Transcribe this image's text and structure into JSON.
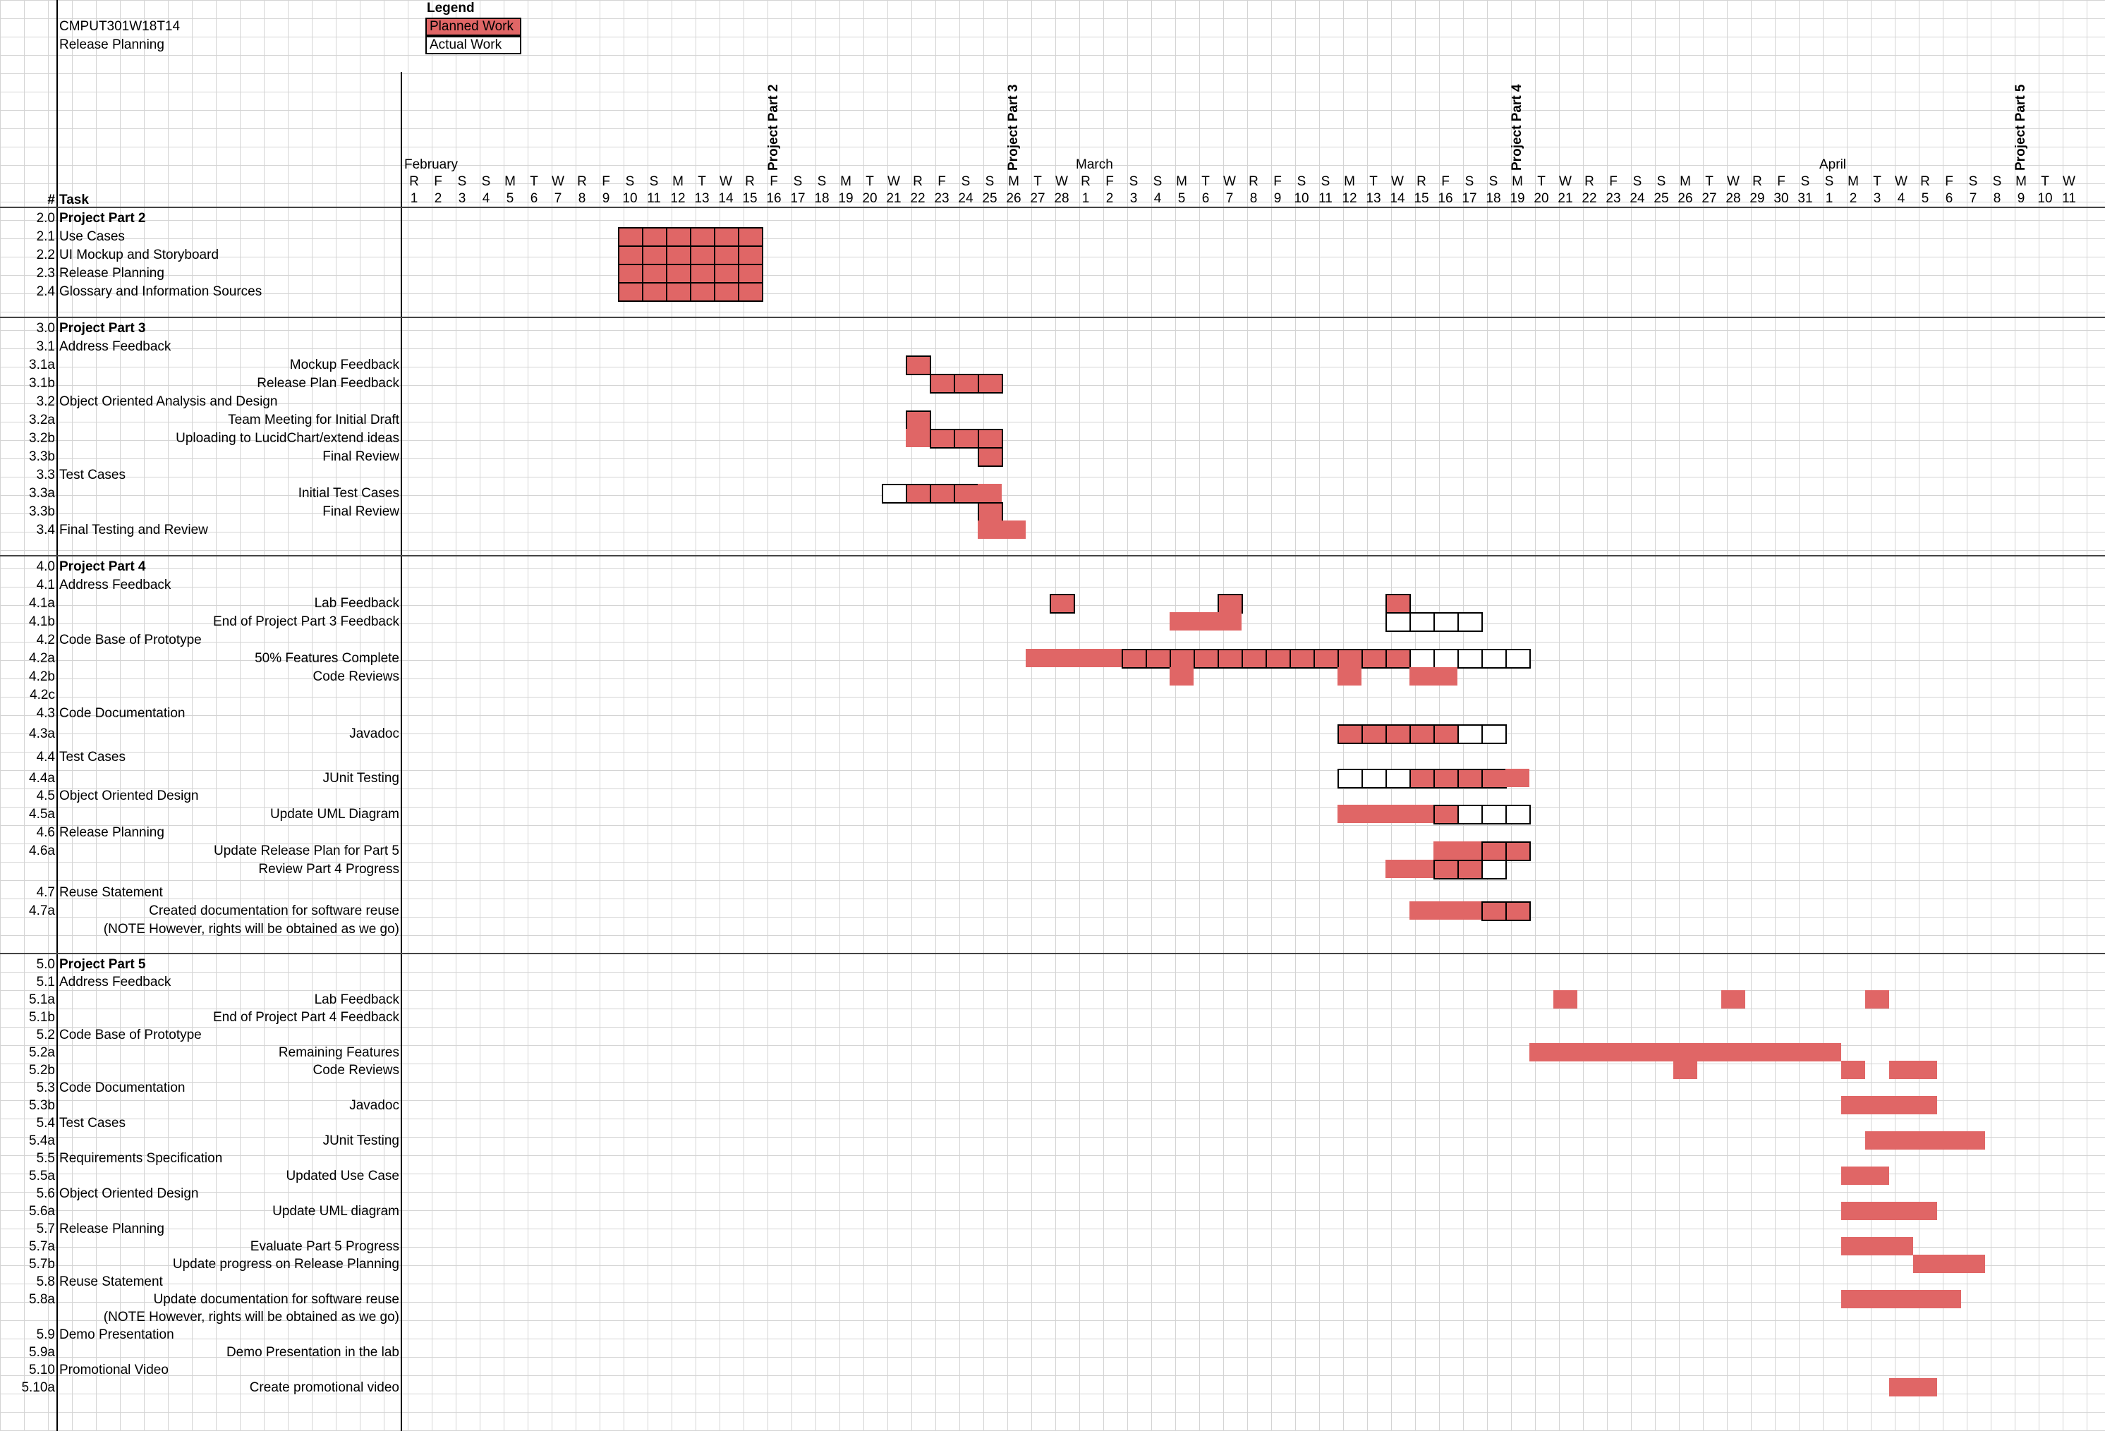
{
  "project": {
    "code": "CMPUT301W18T14",
    "doc_title": "Release Planning"
  },
  "legend": {
    "title": "Legend",
    "planned": "Planned Work",
    "actual": "Actual Work",
    "planned_color": "#e06666",
    "actual_color": "#ffffff"
  },
  "columns": {
    "num": "#",
    "task": "Task"
  },
  "months": [
    "February",
    "March",
    "April"
  ],
  "milestones": [
    "Project Part 2",
    "Project Part 3",
    "Project Part 4",
    "Project Part 5"
  ],
  "day_letters": [
    "R",
    "F",
    "S",
    "S",
    "M",
    "T",
    "W",
    "R",
    "F",
    "S",
    "S",
    "M",
    "T",
    "W",
    "R",
    "F",
    "S",
    "S",
    "M",
    "T",
    "W",
    "R",
    "F",
    "S",
    "S",
    "M",
    "T",
    "W",
    "R",
    "F",
    "S",
    "S",
    "M",
    "T",
    "W",
    "R",
    "F",
    "S",
    "S",
    "M",
    "T",
    "W",
    "R",
    "F",
    "S",
    "S",
    "M",
    "T",
    "W",
    "R",
    "F",
    "S",
    "S",
    "M",
    "T",
    "W",
    "R",
    "F",
    "S",
    "S",
    "M",
    "T",
    "W",
    "R",
    "F",
    "S",
    "S",
    "M",
    "T",
    "W"
  ],
  "day_numbers": [
    "1",
    "2",
    "3",
    "4",
    "5",
    "6",
    "7",
    "8",
    "9",
    "10",
    "11",
    "12",
    "13",
    "14",
    "15",
    "16",
    "17",
    "18",
    "19",
    "20",
    "21",
    "22",
    "23",
    "24",
    "25",
    "26",
    "27",
    "28",
    "1",
    "2",
    "3",
    "4",
    "5",
    "6",
    "7",
    "8",
    "9",
    "10",
    "11",
    "12",
    "13",
    "14",
    "15",
    "16",
    "17",
    "18",
    "19",
    "20",
    "21",
    "22",
    "23",
    "24",
    "25",
    "26",
    "27",
    "28",
    "29",
    "30",
    "31",
    "1",
    "2",
    "3",
    "4",
    "5",
    "6",
    "7",
    "8",
    "9",
    "10",
    "11"
  ],
  "tasks": [
    {
      "num": "2.0",
      "name": "Project Part 2",
      "bold": true,
      "align": "left"
    },
    {
      "num": "2.1",
      "name": "Use Cases",
      "align": "left"
    },
    {
      "num": "2.2",
      "name": "UI Mockup and Storyboard",
      "align": "left"
    },
    {
      "num": "2.3",
      "name": "Release Planning",
      "align": "left"
    },
    {
      "num": "2.4",
      "name": "Glossary and Information Sources",
      "align": "left"
    },
    {
      "num": "3.0",
      "name": "Project Part 3",
      "bold": true,
      "align": "left"
    },
    {
      "num": "3.1",
      "name": "Address Feedback",
      "align": "left"
    },
    {
      "num": "3.1a",
      "name": "Mockup Feedback",
      "align": "right"
    },
    {
      "num": "3.1b",
      "name": "Release Plan Feedback",
      "align": "right"
    },
    {
      "num": "3.2",
      "name": "Object Oriented Analysis and Design",
      "align": "left"
    },
    {
      "num": "3.2a",
      "name": "Team Meeting for Initial Draft",
      "align": "right"
    },
    {
      "num": "3.2b",
      "name": "Uploading to LucidChart/extend ideas",
      "align": "right"
    },
    {
      "num": "3.3b",
      "name": "Final Review",
      "align": "right"
    },
    {
      "num": "3.3",
      "name": "Test Cases",
      "align": "left"
    },
    {
      "num": "3.3a",
      "name": "Initial Test Cases",
      "align": "right"
    },
    {
      "num": "3.3b",
      "name": "Final Review",
      "align": "right"
    },
    {
      "num": "3.4",
      "name": "Final Testing and Review",
      "align": "left"
    },
    {
      "num": "4.0",
      "name": "Project Part 4",
      "bold": true,
      "align": "left"
    },
    {
      "num": "4.1",
      "name": "Address Feedback",
      "align": "left"
    },
    {
      "num": "4.1a",
      "name": "Lab Feedback",
      "align": "right"
    },
    {
      "num": "4.1b",
      "name": "End of Project Part 3 Feedback",
      "align": "right"
    },
    {
      "num": "4.2",
      "name": "Code Base of Prototype",
      "align": "left"
    },
    {
      "num": "4.2a",
      "name": "50% Features Complete",
      "align": "right"
    },
    {
      "num": "4.2b",
      "name": "Code Reviews",
      "align": "right"
    },
    {
      "num": "4.2c",
      "name": "",
      "align": "right"
    },
    {
      "num": "4.3",
      "name": "Code Documentation",
      "align": "left"
    },
    {
      "num": "4.3a",
      "name": "Javadoc",
      "align": "right"
    },
    {
      "num": "4.4",
      "name": "Test Cases",
      "align": "left"
    },
    {
      "num": "4.4a",
      "name": "JUnit Testing",
      "align": "right"
    },
    {
      "num": "4.5",
      "name": "Object Oriented Design",
      "align": "left"
    },
    {
      "num": "4.5a",
      "name": "Update UML Diagram",
      "align": "right"
    },
    {
      "num": "4.6",
      "name": "Release Planning",
      "align": "left"
    },
    {
      "num": "4.6a",
      "name": "Update Release Plan for Part 5",
      "align": "right"
    },
    {
      "num": "",
      "name": "Review Part 4 Progress",
      "align": "right"
    },
    {
      "num": "4.7",
      "name": "Reuse Statement",
      "align": "left"
    },
    {
      "num": "4.7a",
      "name": "Created documentation for software reuse",
      "align": "right"
    },
    {
      "num": "",
      "name": "(NOTE However, rights will be obtained as we go)",
      "align": "right"
    },
    {
      "num": "5.0",
      "name": "Project Part 5",
      "bold": true,
      "align": "left"
    },
    {
      "num": "5.1",
      "name": "Address Feedback",
      "align": "left"
    },
    {
      "num": "5.1a",
      "name": "Lab Feedback",
      "align": "right"
    },
    {
      "num": "5.1b",
      "name": "End of Project Part 4 Feedback",
      "align": "right"
    },
    {
      "num": "5.2",
      "name": "Code Base of Prototype",
      "align": "left"
    },
    {
      "num": "5.2a",
      "name": "Remaining Features",
      "align": "right"
    },
    {
      "num": "5.2b",
      "name": "Code Reviews",
      "align": "right"
    },
    {
      "num": "5.3",
      "name": "Code Documentation",
      "align": "left"
    },
    {
      "num": "5.3b",
      "name": "Javadoc",
      "align": "right"
    },
    {
      "num": "5.4",
      "name": "Test Cases",
      "align": "left"
    },
    {
      "num": "5.4a",
      "name": "JUnit Testing",
      "align": "right"
    },
    {
      "num": "5.5",
      "name": "Requirements Specification",
      "align": "left"
    },
    {
      "num": "5.5a",
      "name": "Updated Use Case",
      "align": "right"
    },
    {
      "num": "5.6",
      "name": "Object Oriented Design",
      "align": "left"
    },
    {
      "num": "5.6a",
      "name": "Update UML diagram",
      "align": "right"
    },
    {
      "num": "5.7",
      "name": "Release Planning",
      "align": "left"
    },
    {
      "num": "5.7a",
      "name": "Evaluate Part 5 Progress",
      "align": "right"
    },
    {
      "num": "5.7b",
      "name": "Update progress on Release Planning",
      "align": "right"
    },
    {
      "num": "5.8",
      "name": "Reuse Statement",
      "align": "left"
    },
    {
      "num": "5.8a",
      "name": "Update documentation for software reuse",
      "align": "right"
    },
    {
      "num": "",
      "name": "(NOTE However, rights will be obtained as we go)",
      "align": "right"
    },
    {
      "num": "5.9",
      "name": "Demo Presentation",
      "align": "left"
    },
    {
      "num": "5.9a",
      "name": "Demo Presentation in the lab",
      "align": "right"
    },
    {
      "num": "5.10",
      "name": "Promotional Video",
      "align": "left"
    },
    {
      "num": "5.10a",
      "name": "Create promotional video",
      "align": "right"
    }
  ]
}
